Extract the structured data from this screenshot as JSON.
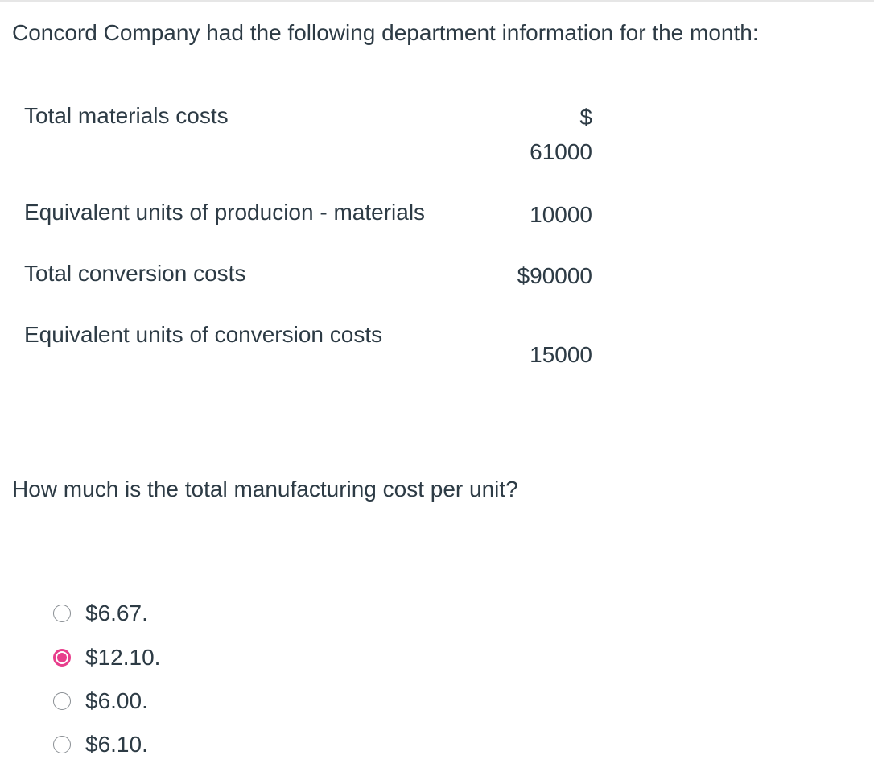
{
  "intro": "Concord Company had the following department information for the month:",
  "table": {
    "rows": [
      [
        "Total materials costs",
        "$\n61000"
      ],
      [
        "Equivalent units of producion - materials",
        "10000"
      ],
      [
        "Total conversion costs",
        "$90000"
      ],
      [
        "Equivalent units of conversion costs",
        "15000"
      ]
    ]
  },
  "question": "How much is the total manufacturing cost per unit?",
  "options": [
    "$6.67.",
    "$12.10.",
    "$6.00.",
    "$6.10."
  ],
  "selected": 1
}
